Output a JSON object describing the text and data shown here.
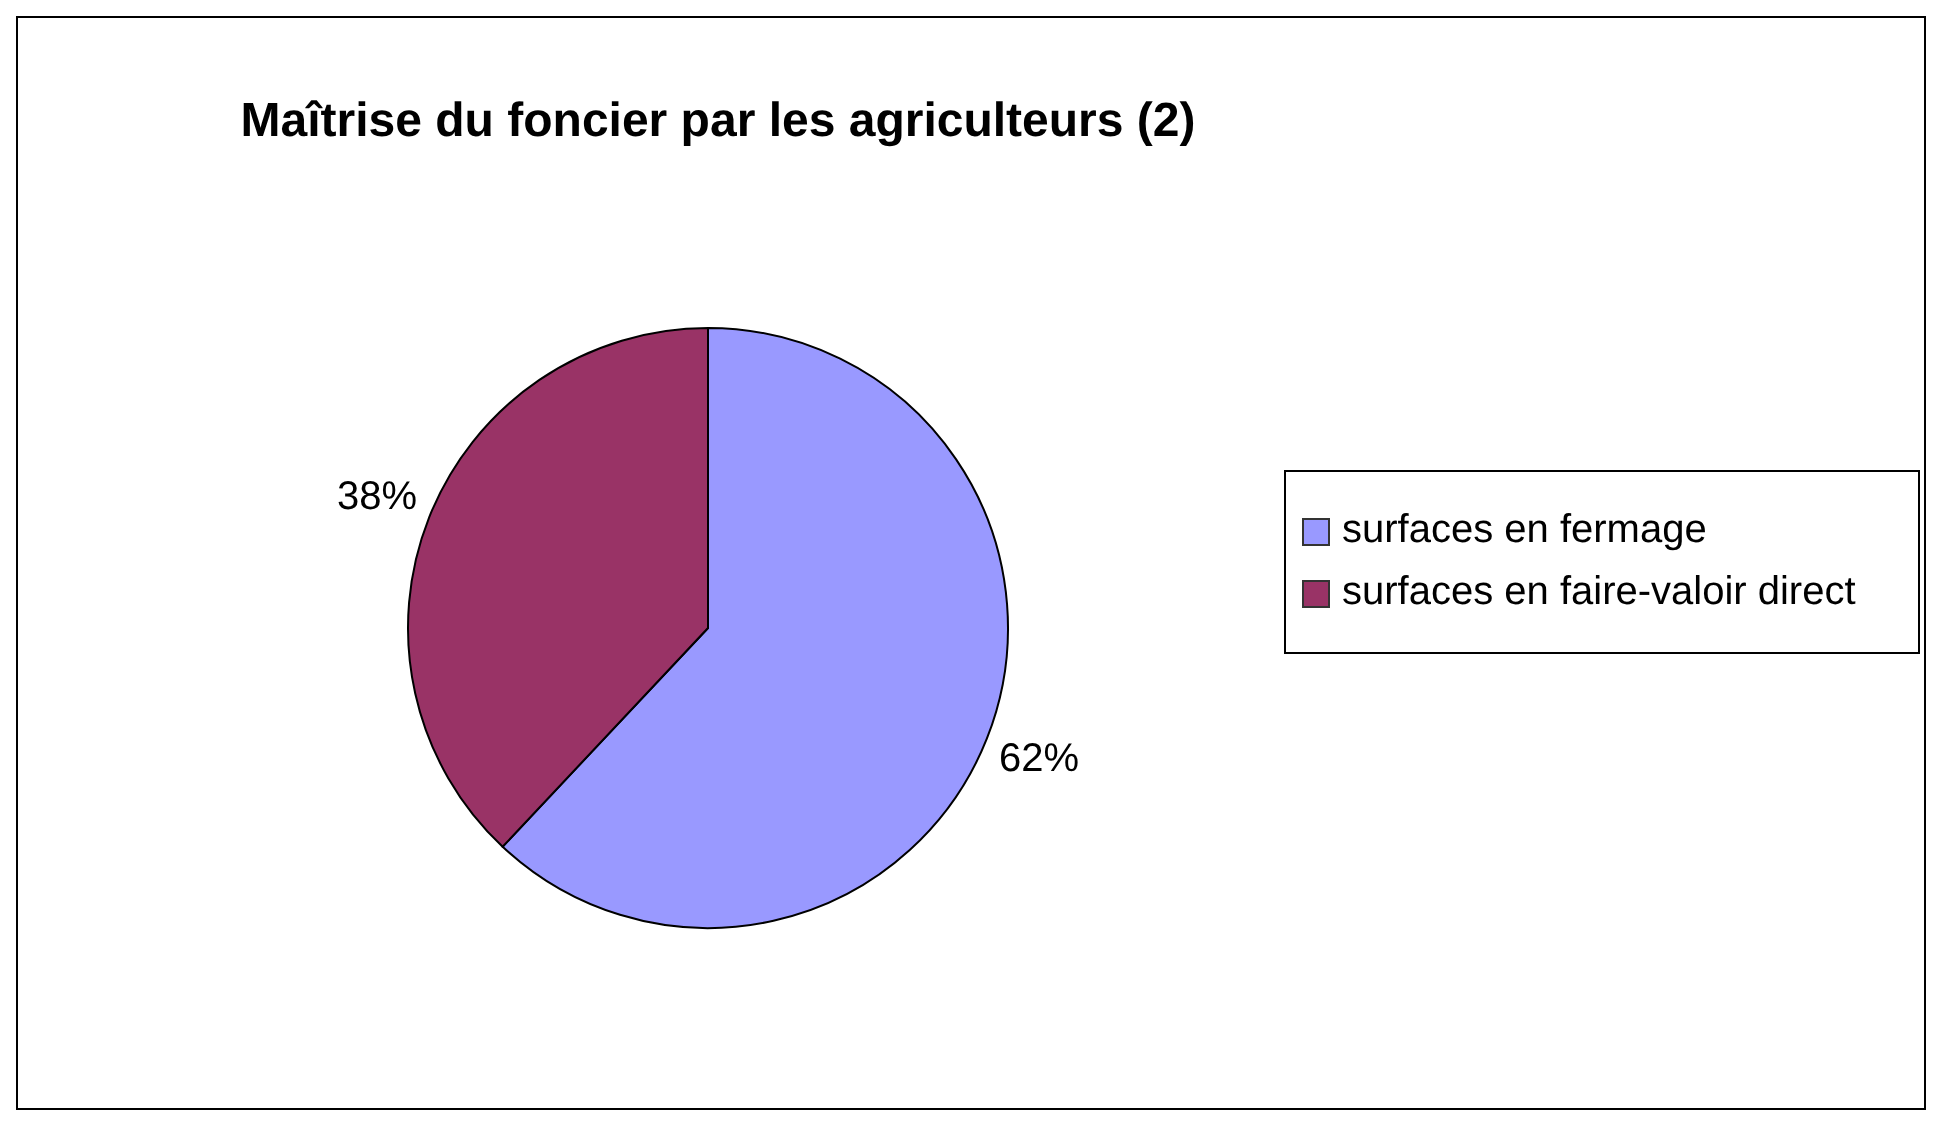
{
  "chart_data": {
    "type": "pie",
    "title": "Maîtrise du foncier par les agriculteurs (2)",
    "categories": [
      "surfaces en fermage",
      "surfaces en faire-valoir direct"
    ],
    "values": [
      62,
      38
    ],
    "colors": [
      "#9999ff",
      "#993366"
    ],
    "value_labels": [
      "62%",
      "38%"
    ],
    "legend": "right"
  }
}
